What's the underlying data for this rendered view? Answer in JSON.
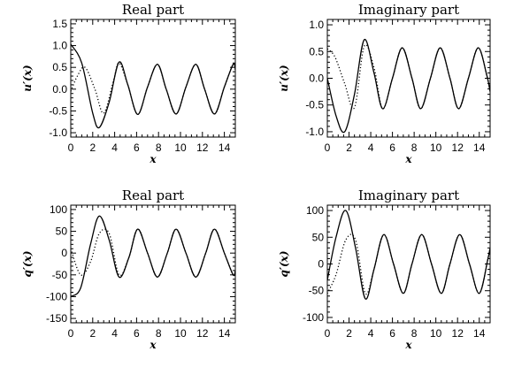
{
  "chart_data": [
    {
      "type": "line",
      "title": "Real part",
      "xlabel": "x",
      "ylabel": "u′(x)",
      "xlim": [
        0,
        15
      ],
      "ylim": [
        -1.1,
        1.6
      ],
      "xticks": [
        "0",
        "2",
        "4",
        "6",
        "8",
        "10",
        "12",
        "14"
      ],
      "yticks": [
        "-1.0",
        "-0.5",
        "0.0",
        "0.5",
        "1.0",
        "1.5"
      ],
      "series": [
        {
          "style": "solid",
          "x": [
            0,
            1,
            2,
            2.6,
            3.5,
            4.4,
            5.2,
            6.1,
            7.0,
            7.9,
            8.7,
            9.6,
            10.5,
            11.4,
            12.2,
            13.1,
            14.0,
            14.8,
            15
          ],
          "y": [
            1.03,
            0.6,
            -0.55,
            -0.88,
            -0.3,
            0.62,
            0.1,
            -0.58,
            0.05,
            0.57,
            0.0,
            -0.57,
            0.05,
            0.57,
            0.0,
            -0.57,
            0.05,
            0.57,
            0.45
          ]
        },
        {
          "style": "dotted",
          "x": [
            0,
            0.6,
            1.3,
            2.2,
            3.0,
            3.9,
            4.4,
            5.2,
            6.1,
            7.0,
            7.9,
            8.7,
            9.6,
            10.5,
            11.4,
            12.2,
            13.1,
            14.0,
            14.8,
            15
          ],
          "y": [
            -0.05,
            0.3,
            0.5,
            0.0,
            -0.55,
            0.2,
            0.6,
            0.1,
            -0.58,
            0.05,
            0.57,
            0.0,
            -0.57,
            0.05,
            0.57,
            0.0,
            -0.57,
            0.05,
            0.57,
            0.45
          ]
        }
      ]
    },
    {
      "type": "line",
      "title": "Imaginary part",
      "xlabel": "x",
      "ylabel": "u′(x)",
      "xlim": [
        0,
        15
      ],
      "ylim": [
        -1.1,
        1.1
      ],
      "xticks": [
        "0",
        "2",
        "4",
        "6",
        "8",
        "10",
        "12",
        "14"
      ],
      "yticks": [
        "-1.0",
        "-0.5",
        "0.0",
        "0.5",
        "1.0"
      ],
      "series": [
        {
          "style": "solid",
          "x": [
            0,
            0.8,
            1.6,
            2.5,
            3.4,
            4.3,
            5.1,
            6.0,
            6.9,
            7.8,
            8.6,
            9.5,
            10.4,
            11.3,
            12.1,
            13.0,
            13.9,
            14.7,
            15
          ],
          "y": [
            0.0,
            -0.7,
            -1.0,
            -0.3,
            0.72,
            0.1,
            -0.57,
            0.0,
            0.57,
            0.0,
            -0.57,
            0.0,
            0.57,
            0.0,
            -0.57,
            0.0,
            0.57,
            0.05,
            -0.25
          ]
        },
        {
          "style": "dotted",
          "x": [
            0,
            0.7,
            1.6,
            2.5,
            3.4,
            4.3,
            5.1,
            6.0,
            6.9,
            7.8,
            8.6,
            9.5,
            10.4,
            11.3,
            12.1,
            13.0,
            13.9,
            14.7,
            15
          ],
          "y": [
            0.55,
            0.4,
            -0.1,
            -0.55,
            0.6,
            0.2,
            -0.57,
            0.0,
            0.57,
            0.0,
            -0.57,
            0.0,
            0.57,
            0.0,
            -0.57,
            0.0,
            0.57,
            0.05,
            -0.25
          ]
        }
      ]
    },
    {
      "type": "line",
      "title": "Real part",
      "xlabel": "x",
      "ylabel": "q′(x)",
      "xlim": [
        0,
        15
      ],
      "ylim": [
        -160,
        110
      ],
      "xticks": [
        "0",
        "2",
        "4",
        "6",
        "8",
        "10",
        "12",
        "14"
      ],
      "yticks": [
        "-150",
        "-100",
        "-50",
        "0",
        "50",
        "100"
      ],
      "series": [
        {
          "style": "solid",
          "x": [
            0,
            0.9,
            1.8,
            2.6,
            3.5,
            4.4,
            5.3,
            6.1,
            7.0,
            7.9,
            8.8,
            9.6,
            10.5,
            11.4,
            12.3,
            13.1,
            14.0,
            14.8,
            15
          ],
          "y": [
            -100,
            -80,
            20,
            85,
            30,
            -55,
            -10,
            55,
            0,
            -55,
            0,
            55,
            0,
            -55,
            0,
            55,
            0,
            -50,
            -40
          ]
        },
        {
          "style": "dotted",
          "x": [
            0,
            0.9,
            1.8,
            2.6,
            3.5,
            4.4,
            5.3,
            6.1,
            7.0,
            7.9,
            8.8,
            9.6,
            10.5,
            11.4,
            12.3,
            13.1,
            14.0,
            14.8,
            15
          ],
          "y": [
            10,
            -50,
            -20,
            45,
            45,
            -50,
            -10,
            55,
            0,
            -55,
            0,
            55,
            0,
            -55,
            0,
            55,
            0,
            -50,
            -40
          ]
        }
      ]
    },
    {
      "type": "line",
      "title": "Imaginary part",
      "xlabel": "x",
      "ylabel": "q′(x)",
      "xlim": [
        0,
        15
      ],
      "ylim": [
        -110,
        110
      ],
      "xticks": [
        "0",
        "2",
        "4",
        "6",
        "8",
        "10",
        "12",
        "14"
      ],
      "yticks": [
        "-100",
        "-50",
        "0",
        "50",
        "100"
      ],
      "series": [
        {
          "style": "solid",
          "x": [
            0,
            0.8,
            1.7,
            2.6,
            3.5,
            4.3,
            5.2,
            6.1,
            7.0,
            7.8,
            8.7,
            9.6,
            10.5,
            11.3,
            12.2,
            13.1,
            14.0,
            14.8,
            15
          ],
          "y": [
            -30,
            50,
            100,
            30,
            -65,
            -10,
            55,
            0,
            -55,
            0,
            55,
            0,
            -55,
            0,
            55,
            0,
            -55,
            10,
            30
          ]
        },
        {
          "style": "dotted",
          "x": [
            0,
            0.8,
            1.7,
            2.6,
            3.5,
            4.3,
            5.2,
            6.1,
            7.0,
            7.8,
            8.7,
            9.6,
            10.5,
            11.3,
            12.2,
            13.1,
            14.0,
            14.8,
            15
          ],
          "y": [
            -55,
            -20,
            45,
            45,
            -55,
            -10,
            55,
            0,
            -55,
            0,
            55,
            0,
            -55,
            0,
            55,
            0,
            -55,
            10,
            30
          ]
        }
      ]
    }
  ]
}
